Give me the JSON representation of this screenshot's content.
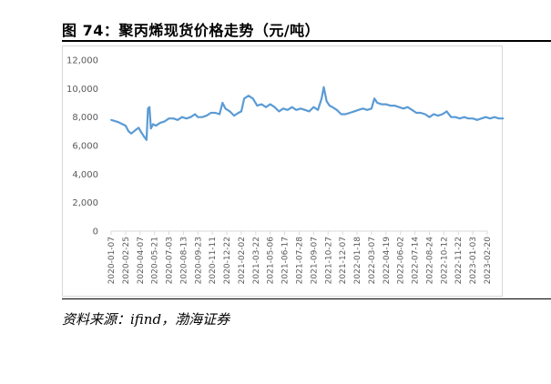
{
  "header": {
    "title": "图 74：聚丙烯现货价格走势（元/吨）"
  },
  "footer": {
    "source": "资料来源：ifind，渤海证券"
  },
  "colors": {
    "line": "#5b9bd5",
    "axis": "#d9d9d9",
    "tick_text": "#595959"
  },
  "chart_data": {
    "type": "line",
    "title": "",
    "xlabel": "",
    "ylabel": "",
    "ylim": [
      0,
      12000
    ],
    "yticks": [
      0,
      2000,
      4000,
      6000,
      8000,
      10000,
      12000
    ],
    "ytick_labels": [
      "0",
      "2,000",
      "4,000",
      "6,000",
      "8,000",
      "10,000",
      "12,000"
    ],
    "grid": false,
    "legend": "none",
    "xtick_labels": [
      "2020-01-07",
      "2020-02-25",
      "2020-04-07",
      "2020-05-21",
      "2020-07-03",
      "2020-08-13",
      "2020-09-23",
      "2020-11-11",
      "2020-12-22",
      "2021-02-02",
      "2021-03-22",
      "2021-05-06",
      "2021-06-17",
      "2021-07-28",
      "2021-09-07",
      "2021-10-27",
      "2021-12-07",
      "2022-01-18",
      "2022-03-07",
      "2022-04-19",
      "2022-06-02",
      "2022-07-14",
      "2022-08-24",
      "2022-10-12",
      "2022-11-22",
      "2023-01-03",
      "2023-02-20"
    ],
    "series": [
      {
        "values": [
          [
            0,
            7800
          ],
          [
            0.5,
            7650
          ],
          [
            1.0,
            7400
          ],
          [
            1.2,
            7000
          ],
          [
            1.4,
            6850
          ],
          [
            1.7,
            7100
          ],
          [
            1.9,
            7250
          ],
          [
            2.1,
            6900
          ],
          [
            2.3,
            6600
          ],
          [
            2.45,
            6400
          ],
          [
            2.55,
            8600
          ],
          [
            2.65,
            8700
          ],
          [
            2.75,
            7200
          ],
          [
            2.9,
            7500
          ],
          [
            3.1,
            7400
          ],
          [
            3.4,
            7600
          ],
          [
            3.7,
            7700
          ],
          [
            4.0,
            7900
          ],
          [
            4.3,
            7900
          ],
          [
            4.6,
            7800
          ],
          [
            4.9,
            8000
          ],
          [
            5.2,
            7900
          ],
          [
            5.5,
            8000
          ],
          [
            5.8,
            8200
          ],
          [
            6.0,
            8000
          ],
          [
            6.3,
            8000
          ],
          [
            6.6,
            8100
          ],
          [
            6.9,
            8300
          ],
          [
            7.2,
            8300
          ],
          [
            7.5,
            8200
          ],
          [
            7.7,
            9000
          ],
          [
            7.9,
            8600
          ],
          [
            8.2,
            8400
          ],
          [
            8.5,
            8100
          ],
          [
            8.8,
            8300
          ],
          [
            9.0,
            8400
          ],
          [
            9.2,
            9300
          ],
          [
            9.5,
            9500
          ],
          [
            9.8,
            9300
          ],
          [
            10.1,
            8800
          ],
          [
            10.4,
            8900
          ],
          [
            10.7,
            8700
          ],
          [
            11.0,
            8900
          ],
          [
            11.3,
            8700
          ],
          [
            11.6,
            8400
          ],
          [
            11.9,
            8600
          ],
          [
            12.2,
            8500
          ],
          [
            12.5,
            8700
          ],
          [
            12.8,
            8500
          ],
          [
            13.1,
            8600
          ],
          [
            13.4,
            8500
          ],
          [
            13.7,
            8400
          ],
          [
            14.0,
            8700
          ],
          [
            14.3,
            8500
          ],
          [
            14.55,
            9300
          ],
          [
            14.7,
            10100
          ],
          [
            14.9,
            9100
          ],
          [
            15.1,
            8800
          ],
          [
            15.3,
            8700
          ],
          [
            15.6,
            8500
          ],
          [
            15.9,
            8200
          ],
          [
            16.2,
            8200
          ],
          [
            16.5,
            8300
          ],
          [
            16.8,
            8400
          ],
          [
            17.1,
            8500
          ],
          [
            17.4,
            8600
          ],
          [
            17.7,
            8500
          ],
          [
            18.0,
            8600
          ],
          [
            18.2,
            9300
          ],
          [
            18.4,
            9000
          ],
          [
            18.7,
            8900
          ],
          [
            19.0,
            8900
          ],
          [
            19.3,
            8800
          ],
          [
            19.6,
            8800
          ],
          [
            19.9,
            8700
          ],
          [
            20.2,
            8600
          ],
          [
            20.5,
            8700
          ],
          [
            20.8,
            8500
          ],
          [
            21.1,
            8300
          ],
          [
            21.4,
            8300
          ],
          [
            21.7,
            8200
          ],
          [
            22.0,
            8000
          ],
          [
            22.3,
            8200
          ],
          [
            22.6,
            8100
          ],
          [
            22.9,
            8200
          ],
          [
            23.2,
            8400
          ],
          [
            23.5,
            8000
          ],
          [
            23.8,
            8000
          ],
          [
            24.1,
            7900
          ],
          [
            24.4,
            8000
          ],
          [
            24.7,
            7900
          ],
          [
            25.0,
            7900
          ],
          [
            25.3,
            7800
          ],
          [
            25.6,
            7900
          ],
          [
            25.9,
            8000
          ],
          [
            26.2,
            7900
          ],
          [
            26.5,
            8000
          ],
          [
            26.8,
            7900
          ],
          [
            27.1,
            7900
          ]
        ]
      }
    ]
  }
}
